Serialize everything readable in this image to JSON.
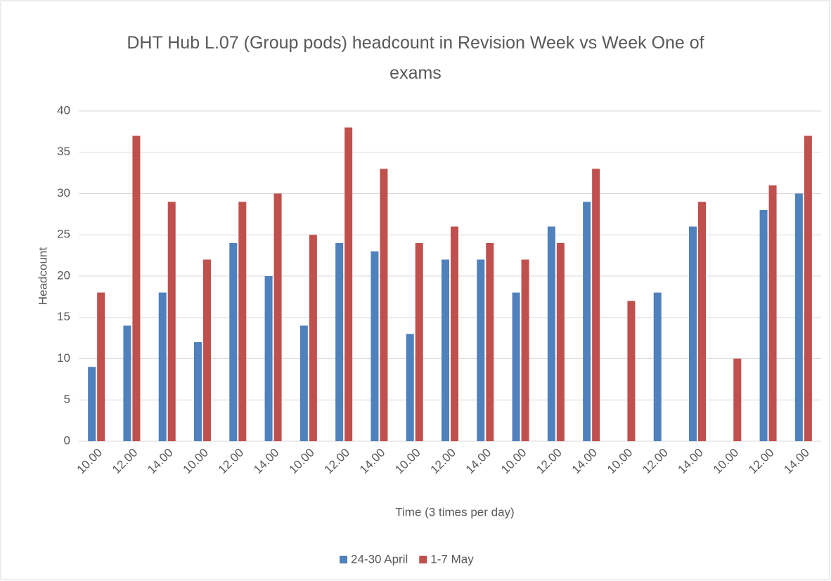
{
  "chart_data": {
    "type": "bar",
    "title": "DHT Hub L.07 (Group pods) headcount in Revision Week vs Week One of exams",
    "x_label": "Time (3 times per day)",
    "y_label": "Headcount",
    "categories": [
      "10.00",
      "12.00",
      "14.00",
      "10.00",
      "12.00",
      "14.00",
      "10.00",
      "12.00",
      "14.00",
      "10.00",
      "12.00",
      "14.00",
      "10.00",
      "12.00",
      "14.00",
      "10.00",
      "12.00",
      "14.00",
      "10.00",
      "12.00",
      "14.00"
    ],
    "series": [
      {
        "name": "24-30 April",
        "color": "#4f81bd",
        "values": [
          9,
          14,
          18,
          12,
          24,
          20,
          14,
          24,
          23,
          13,
          22,
          22,
          18,
          26,
          29,
          null,
          18,
          26,
          null,
          28,
          30
        ]
      },
      {
        "name": "1-7 May",
        "color": "#c0504d",
        "values": [
          18,
          37,
          29,
          22,
          29,
          30,
          25,
          38,
          33,
          24,
          26,
          24,
          22,
          24,
          33,
          17,
          null,
          29,
          10,
          31,
          37
        ]
      }
    ],
    "ylim": [
      0,
      40
    ],
    "yticks": [
      0,
      5,
      10,
      15,
      20,
      25,
      30,
      35,
      40
    ],
    "grid": true,
    "legend": "bottom"
  }
}
